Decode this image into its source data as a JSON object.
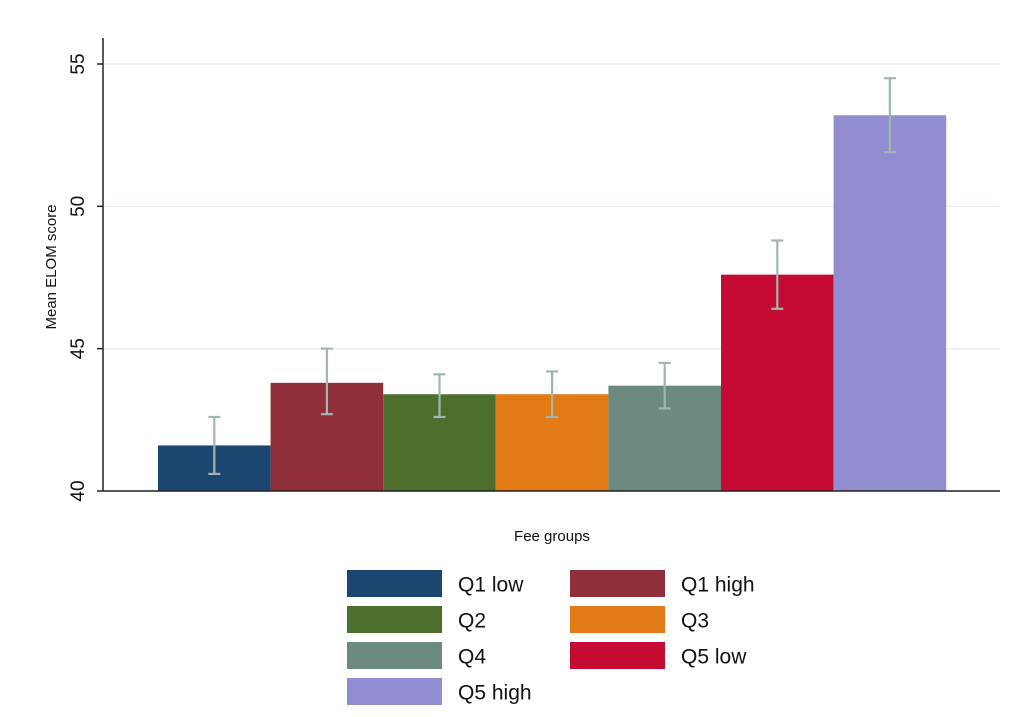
{
  "chart_data": {
    "type": "bar",
    "xlabel": "Fee groups",
    "ylabel": "Mean ELOM score",
    "ylim": [
      40,
      56
    ],
    "yticks": [
      40,
      45,
      50,
      55
    ],
    "grid": true,
    "legend_position": "bottom",
    "series": [
      {
        "name": "Q1 low",
        "value": 41.6,
        "ci_low": 40.6,
        "ci_high": 42.6,
        "color": "#1a466f"
      },
      {
        "name": "Q1 high",
        "value": 43.8,
        "ci_low": 42.7,
        "ci_high": 45.0,
        "color": "#8e2f39"
      },
      {
        "name": "Q2",
        "value": 43.4,
        "ci_low": 42.6,
        "ci_high": 44.1,
        "color": "#4d6f2e"
      },
      {
        "name": "Q3",
        "value": 43.4,
        "ci_low": 42.6,
        "ci_high": 44.2,
        "color": "#e27a16"
      },
      {
        "name": "Q4",
        "value": 43.7,
        "ci_low": 42.9,
        "ci_high": 44.5,
        "color": "#6c8a80"
      },
      {
        "name": "Q5 low",
        "value": 47.6,
        "ci_low": 46.4,
        "ci_high": 48.8,
        "color": "#c60b33"
      },
      {
        "name": "Q5 high",
        "value": 53.2,
        "ci_low": 51.9,
        "ci_high": 54.5,
        "color": "#918dd0"
      }
    ]
  }
}
